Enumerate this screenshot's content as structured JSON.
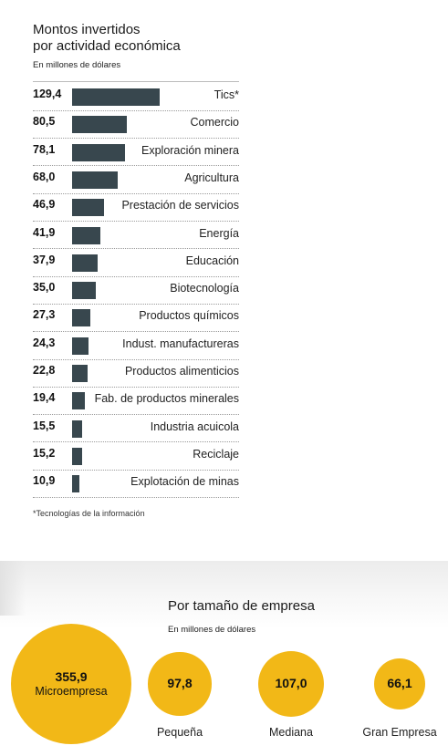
{
  "chart_data": [
    {
      "type": "bar",
      "title": "Montos invertidos por actividad económica",
      "subtitle": "En millones de dólares",
      "orientation": "horizontal",
      "categories": [
        "Tics*",
        "Comercio",
        "Exploración minera",
        "Agricultura",
        "Prestación de servicios",
        "Energía",
        "Educación",
        "Biotecnología",
        "Productos químicos",
        "Indust. manufactureras",
        "Productos alimenticios",
        "Fab. de productos minerales",
        "Industria acuicola",
        "Reciclaje",
        "Explotación de minas"
      ],
      "values": [
        129.4,
        80.5,
        78.1,
        68.0,
        46.9,
        41.9,
        37.9,
        35.0,
        27.3,
        24.3,
        22.8,
        19.4,
        15.5,
        15.2,
        10.9
      ],
      "value_labels": [
        "129,4",
        "80,5",
        "78,1",
        "68,0",
        "46,9",
        "41,9",
        "37,9",
        "35,0",
        "27,3",
        "24,3",
        "22,8",
        "19,4",
        "15,5",
        "15,2",
        "10,9"
      ],
      "bar_color": "#38474e",
      "footnote": "*Tecnologías de la información"
    },
    {
      "type": "bubble",
      "title": "Por tamaño de empresa",
      "subtitle": "En millones de dólares",
      "categories": [
        "Microempresa",
        "Pequeña",
        "Mediana",
        "Gran Empresa"
      ],
      "values": [
        355.9,
        97.8,
        107.0,
        66.1
      ],
      "value_labels": [
        "355,9",
        "97,8",
        "107,0",
        "66,1"
      ],
      "bubble_color": "#f2b817"
    }
  ]
}
